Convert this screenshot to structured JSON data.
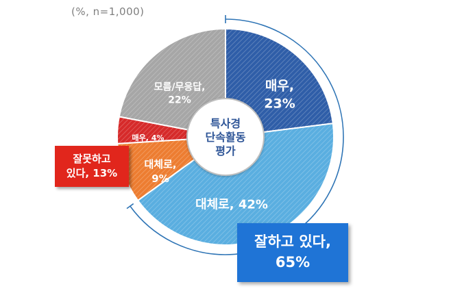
{
  "note": "(%, n=1,000)",
  "center_label": [
    "특사경",
    "단속활동",
    "평가"
  ],
  "chart_data": {
    "type": "pie",
    "title": "",
    "donut": true,
    "slices": [
      {
        "key": "very_good",
        "label_lines": [
          "매우,",
          "23%"
        ],
        "value": 23,
        "color": "#2f5ea8",
        "text_color": "#ffffff"
      },
      {
        "key": "mostly_good",
        "label_lines": [
          "대체로, 42%"
        ],
        "value": 42,
        "color": "#5aaee0",
        "text_color": "#ffffff"
      },
      {
        "key": "mostly_bad",
        "label_lines": [
          "대체로,",
          "9%"
        ],
        "value": 9,
        "color": "#ed7d31",
        "text_color": "#ffffff"
      },
      {
        "key": "very_bad",
        "label_lines": [
          "매우, 4%"
        ],
        "value": 4,
        "color": "#d62a2a",
        "text_color": "#ffffff"
      },
      {
        "key": "dont_know",
        "label_lines": [
          "모름/무응답,",
          "22%"
        ],
        "value": 22,
        "color": "#a6a6a6",
        "text_color": "#ffffff"
      }
    ],
    "groups": [
      {
        "key": "negative",
        "lines": [
          "잘못하고",
          "있다, 13%"
        ],
        "value": 13,
        "color": "#e1261c"
      },
      {
        "key": "positive",
        "lines": [
          "잘하고 있다,",
          "65%"
        ],
        "value": 65,
        "color": "#1f74d6"
      }
    ]
  }
}
